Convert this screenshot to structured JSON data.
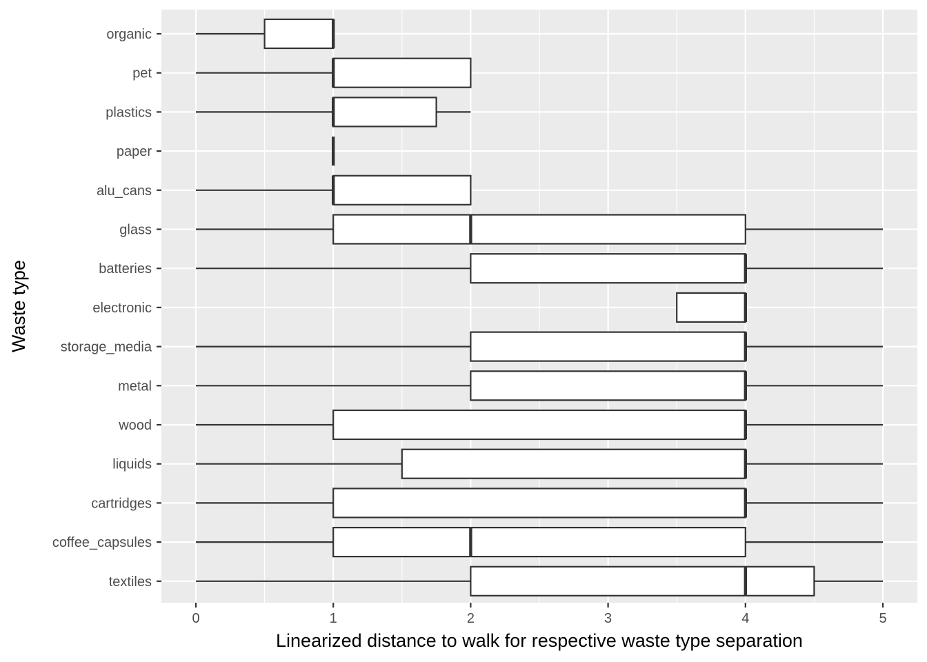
{
  "chart_data": {
    "type": "boxplot",
    "orientation": "horizontal",
    "xlabel": "Linearized distance to walk for respective waste type separation",
    "ylabel": "Waste type",
    "xlim": [
      -0.25,
      5.25
    ],
    "xticks": [
      "0",
      "1",
      "2",
      "3",
      "4",
      "5"
    ],
    "grid": true,
    "categories": [
      "organic",
      "pet",
      "plastics",
      "paper",
      "alu_cans",
      "glass",
      "batteries",
      "electronic",
      "storage_media",
      "metal",
      "wood",
      "liquids",
      "cartridges",
      "coffee_capsules",
      "textiles"
    ],
    "boxes": [
      {
        "label": "organic",
        "whisker_low": 0,
        "q1": 0.5,
        "median": 1,
        "q3": 1,
        "whisker_high": 1
      },
      {
        "label": "pet",
        "whisker_low": 0,
        "q1": 1,
        "median": 1,
        "q3": 2,
        "whisker_high": 2
      },
      {
        "label": "plastics",
        "whisker_low": 0,
        "q1": 1,
        "median": 1,
        "q3": 1.75,
        "whisker_high": 2
      },
      {
        "label": "paper",
        "whisker_low": 1,
        "q1": 1,
        "median": 1,
        "q3": 1,
        "whisker_high": 1
      },
      {
        "label": "alu_cans",
        "whisker_low": 0,
        "q1": 1,
        "median": 1,
        "q3": 2,
        "whisker_high": 2
      },
      {
        "label": "glass",
        "whisker_low": 0,
        "q1": 1,
        "median": 2,
        "q3": 4,
        "whisker_high": 5
      },
      {
        "label": "batteries",
        "whisker_low": 0,
        "q1": 2,
        "median": 4,
        "q3": 4,
        "whisker_high": 5
      },
      {
        "label": "electronic",
        "whisker_low": 3.5,
        "q1": 3.5,
        "median": 4,
        "q3": 4,
        "whisker_high": 4
      },
      {
        "label": "storage_media",
        "whisker_low": 0,
        "q1": 2,
        "median": 4,
        "q3": 4,
        "whisker_high": 5
      },
      {
        "label": "metal",
        "whisker_low": 0,
        "q1": 2,
        "median": 4,
        "q3": 4,
        "whisker_high": 5
      },
      {
        "label": "wood",
        "whisker_low": 0,
        "q1": 1,
        "median": 4,
        "q3": 4,
        "whisker_high": 5
      },
      {
        "label": "liquids",
        "whisker_low": 0,
        "q1": 1.5,
        "median": 4,
        "q3": 4,
        "whisker_high": 5
      },
      {
        "label": "cartridges",
        "whisker_low": 0,
        "q1": 1,
        "median": 4,
        "q3": 4,
        "whisker_high": 5
      },
      {
        "label": "coffee_capsules",
        "whisker_low": 0,
        "q1": 1,
        "median": 2,
        "q3": 4,
        "whisker_high": 5
      },
      {
        "label": "textiles",
        "whisker_low": 0,
        "q1": 2,
        "median": 4,
        "q3": 4.5,
        "whisker_high": 5
      }
    ],
    "colors": {
      "panel_background": "#ebebeb",
      "grid_major": "#ffffff",
      "box_fill": "#ffffff",
      "box_stroke": "#333333",
      "tick_label": "#4d4d4d",
      "axis_tick": "#333333"
    }
  }
}
